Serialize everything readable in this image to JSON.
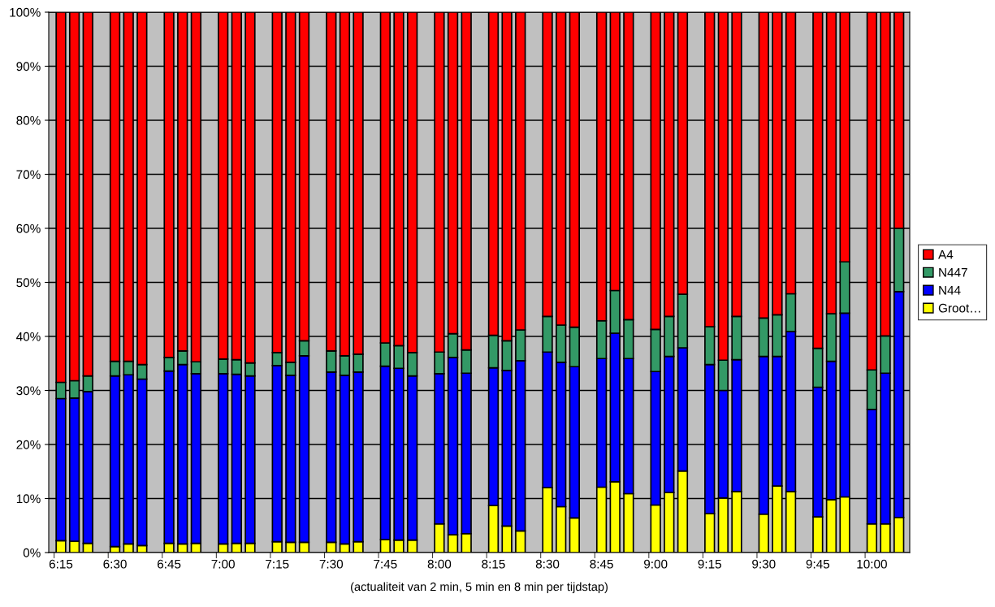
{
  "chart_data": {
    "type": "bar",
    "stacked": true,
    "xlabel": "(actualiteit van 2 min, 5 min en 8 min per tijdstap)",
    "categories": [
      "6:15",
      null,
      null,
      null,
      "6:30",
      null,
      null,
      null,
      "6:45",
      null,
      null,
      null,
      "7:00",
      null,
      null,
      null,
      "7:15",
      null,
      null,
      null,
      "7:30",
      null,
      null,
      null,
      "7:45",
      null,
      null,
      null,
      "8:00",
      null,
      null,
      null,
      "8:15",
      null,
      null,
      null,
      "8:30",
      null,
      null,
      null,
      "8:45",
      null,
      null,
      null,
      "9:00",
      null,
      null,
      null,
      "9:15",
      null,
      null,
      null,
      "9:30",
      null,
      null,
      null,
      "9:45",
      null,
      null,
      null,
      "10:00",
      null,
      null
    ],
    "series": [
      {
        "name": "Groot…",
        "color": "#ffff00",
        "values": [
          2.2,
          2.1,
          1.7,
          null,
          1.1,
          1.6,
          1.3,
          null,
          1.7,
          1.6,
          1.7,
          null,
          1.6,
          1.7,
          1.7,
          null,
          2.0,
          1.9,
          1.9,
          null,
          1.9,
          1.6,
          2.0,
          null,
          2.4,
          2.3,
          2.3,
          null,
          5.3,
          3.3,
          3.5,
          null,
          8.7,
          4.9,
          4.0,
          null,
          12.0,
          8.5,
          6.4,
          null,
          12.1,
          13.1,
          10.9,
          null,
          8.8,
          11.1,
          15.1,
          null,
          7.2,
          10.1,
          11.3,
          null,
          7.1,
          12.3,
          11.3,
          null,
          6.6,
          9.8,
          10.3,
          null,
          5.3,
          5.3,
          6.5
        ]
      },
      {
        "name": "N44",
        "color": "#0000ff",
        "values": [
          26.3,
          26.5,
          28.1,
          null,
          31.6,
          31.3,
          30.8,
          null,
          31.9,
          33.2,
          31.4,
          null,
          31.5,
          31.3,
          31.0,
          null,
          32.6,
          30.9,
          34.5,
          null,
          31.5,
          31.2,
          31.4,
          null,
          32.1,
          31.8,
          30.4,
          null,
          27.8,
          32.8,
          29.7,
          null,
          25.5,
          28.8,
          31.5,
          null,
          25.1,
          26.7,
          28.0,
          null,
          23.8,
          27.5,
          25.0,
          null,
          24.7,
          25.2,
          22.8,
          null,
          27.6,
          19.9,
          24.4,
          null,
          29.2,
          24.0,
          29.6,
          null,
          24.0,
          25.6,
          34.0,
          null,
          21.2,
          27.9,
          41.8
        ]
      },
      {
        "name": "N447",
        "color": "#339966",
        "values": [
          3.0,
          3.2,
          2.9,
          null,
          2.7,
          2.5,
          2.7,
          null,
          2.5,
          2.5,
          2.2,
          null,
          2.7,
          2.7,
          2.4,
          null,
          2.4,
          2.4,
          2.8,
          null,
          3.9,
          3.6,
          3.3,
          null,
          4.3,
          4.2,
          4.3,
          null,
          4.0,
          4.4,
          4.3,
          null,
          6.0,
          5.5,
          5.7,
          null,
          6.6,
          6.9,
          7.3,
          null,
          7.0,
          7.9,
          7.2,
          null,
          7.8,
          7.4,
          9.9,
          null,
          7.0,
          5.6,
          8.0,
          null,
          7.1,
          7.7,
          7.0,
          null,
          7.2,
          8.8,
          9.5,
          null,
          7.3,
          6.9,
          11.7
        ]
      },
      {
        "name": "A4",
        "color": "#ff0000",
        "values": [
          68.5,
          68.2,
          67.3,
          null,
          64.6,
          64.6,
          65.2,
          null,
          63.9,
          62.7,
          64.7,
          null,
          64.2,
          64.3,
          64.9,
          null,
          63.0,
          64.8,
          60.8,
          null,
          62.7,
          63.6,
          63.3,
          null,
          61.2,
          61.7,
          63.0,
          null,
          62.9,
          59.5,
          62.5,
          null,
          59.8,
          60.8,
          58.8,
          null,
          56.3,
          57.9,
          58.3,
          null,
          57.1,
          51.5,
          56.9,
          null,
          58.7,
          56.3,
          52.2,
          null,
          58.2,
          64.4,
          56.3,
          null,
          56.6,
          56.0,
          52.1,
          null,
          62.2,
          55.8,
          46.2,
          null,
          66.2,
          59.9,
          40.0
        ]
      }
    ],
    "ylim": [
      0,
      100
    ],
    "yticks": [
      {
        "value": 0,
        "label": "0%"
      },
      {
        "value": 10,
        "label": "10%"
      },
      {
        "value": 20,
        "label": "20%"
      },
      {
        "value": 30,
        "label": "30%"
      },
      {
        "value": 40,
        "label": "40%"
      },
      {
        "value": 50,
        "label": "50%"
      },
      {
        "value": 60,
        "label": "60%"
      },
      {
        "value": 70,
        "label": "70%"
      },
      {
        "value": 80,
        "label": "80%"
      },
      {
        "value": 90,
        "label": "90%"
      },
      {
        "value": 100,
        "label": "100%"
      }
    ],
    "grid": "y",
    "legend": "right"
  }
}
